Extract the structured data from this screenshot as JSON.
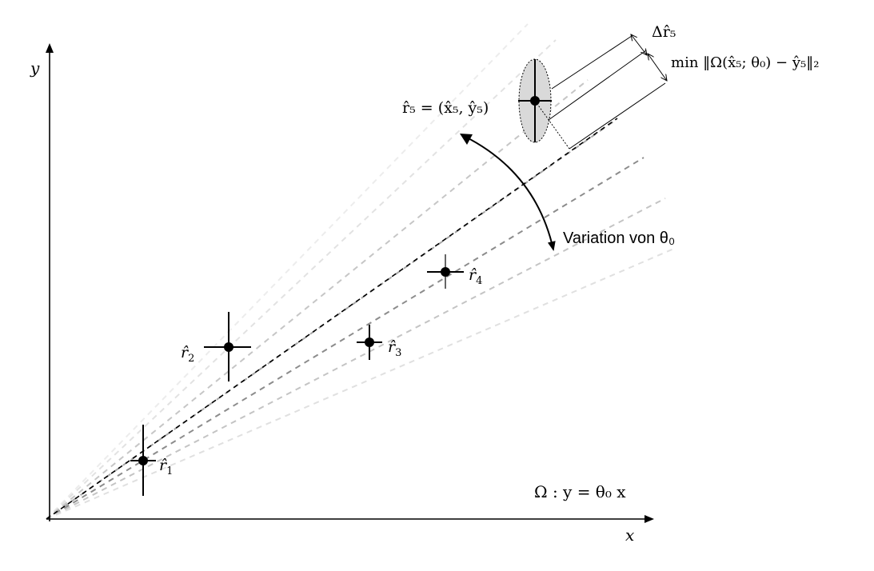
{
  "axes": {
    "x_label": "x",
    "y_label": "y"
  },
  "points": [
    {
      "id": "r1",
      "label": "r̂",
      "subscript": "1"
    },
    {
      "id": "r2",
      "label": "r̂",
      "subscript": "2"
    },
    {
      "id": "r3",
      "label": "r̂",
      "subscript": "3"
    },
    {
      "id": "r4",
      "label": "r̂",
      "subscript": "4"
    },
    {
      "id": "r5",
      "label": "r̂",
      "subscript": "5"
    }
  ],
  "annotations": {
    "r5_definition": "r̂₅ = (x̂₅, ŷ₅)",
    "delta_r5": "Δr̂₅",
    "min_residual": "min ‖Ω(x̂₅; θ₀) − ŷ₅‖₂",
    "variation": "Variation von θ₀",
    "model": "Ω : y = θ₀ x"
  },
  "colors": {
    "ink": "#000000",
    "ellipse_fill": "#d9d9d9",
    "fan_lines": [
      "#ececec",
      "#e0e0e0",
      "#a8a8a8",
      "#8c8c8c",
      "#c4c4c4",
      "#dcdcdc"
    ]
  }
}
